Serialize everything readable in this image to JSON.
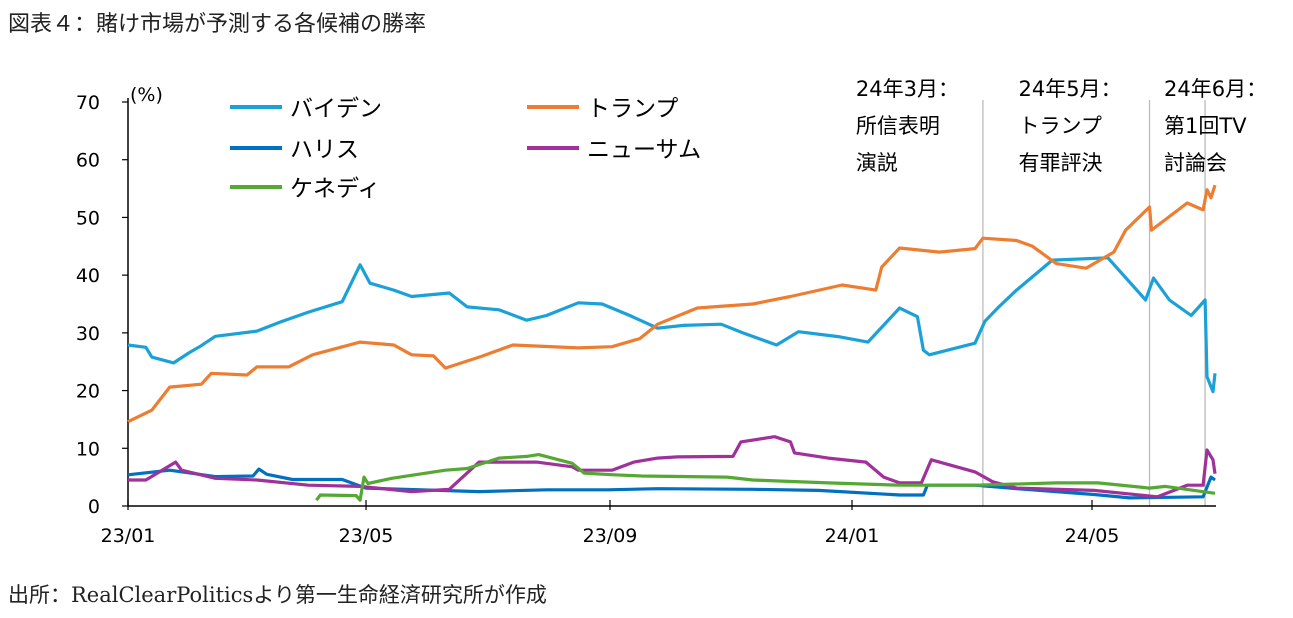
{
  "title": "図表４：賭け市場が予測する各候補の勝率",
  "source": "出所：RealClearPoliticsより第一生命経済研究所が作成",
  "chart_data": {
    "type": "line",
    "ylabel": "(%)",
    "ylim": [
      0,
      70
    ],
    "yticks": [
      0,
      10,
      20,
      30,
      40,
      50,
      60,
      70
    ],
    "xlim": [
      "2023-01-01",
      "2024-07-08"
    ],
    "xticks": [
      {
        "date": "2023-01-01",
        "label": "23/01"
      },
      {
        "date": "2023-05-01",
        "label": "23/05"
      },
      {
        "date": "2023-09-01",
        "label": "23/09"
      },
      {
        "date": "2024-01-01",
        "label": "24/01"
      },
      {
        "date": "2024-05-01",
        "label": "24/05"
      }
    ],
    "grid": false,
    "legend_position": "top-left",
    "annotations": [
      {
        "date": "2024-03-07",
        "lines": [
          "24年3月：",
          "所信表明",
          "演説"
        ]
      },
      {
        "date": "2024-05-30",
        "lines": [
          "24年5月：",
          "トランプ",
          "有罪評決"
        ]
      },
      {
        "date": "2024-06-27",
        "lines": [
          "24年6月：",
          "第1回TV",
          "討論会"
        ]
      }
    ],
    "series": [
      {
        "name": "バイデン",
        "color": "#1BA1D8",
        "points": [
          [
            "2023-01-01",
            27.9
          ],
          [
            "2023-01-10",
            27.5
          ],
          [
            "2023-01-13",
            25.8
          ],
          [
            "2023-01-24",
            24.8
          ],
          [
            "2023-02-01",
            26.6
          ],
          [
            "2023-02-07",
            27.8
          ],
          [
            "2023-02-14",
            29.4
          ],
          [
            "2023-03-07",
            30.3
          ],
          [
            "2023-03-19",
            31.9
          ],
          [
            "2023-04-02",
            33.6
          ],
          [
            "2023-04-19",
            35.4
          ],
          [
            "2023-04-28",
            41.8
          ],
          [
            "2023-05-03",
            38.6
          ],
          [
            "2023-05-15",
            37.4
          ],
          [
            "2023-05-24",
            36.3
          ],
          [
            "2023-06-12",
            36.9
          ],
          [
            "2023-06-21",
            34.5
          ],
          [
            "2023-07-07",
            34.0
          ],
          [
            "2023-07-21",
            32.2
          ],
          [
            "2023-07-31",
            33.0
          ],
          [
            "2023-08-16",
            35.2
          ],
          [
            "2023-08-28",
            35.0
          ],
          [
            "2023-09-11",
            33.0
          ],
          [
            "2023-09-25",
            30.8
          ],
          [
            "2023-10-08",
            31.3
          ],
          [
            "2023-10-27",
            31.5
          ],
          [
            "2023-11-07",
            30.0
          ],
          [
            "2023-11-24",
            27.9
          ],
          [
            "2023-12-05",
            30.2
          ],
          [
            "2023-12-26",
            29.3
          ],
          [
            "2024-01-09",
            28.4
          ],
          [
            "2024-01-18",
            31.7
          ],
          [
            "2024-01-25",
            34.3
          ],
          [
            "2024-02-03",
            32.8
          ],
          [
            "2024-02-06",
            27.0
          ],
          [
            "2024-02-09",
            26.2
          ],
          [
            "2024-03-03",
            28.2
          ],
          [
            "2024-03-08",
            32.0
          ],
          [
            "2024-03-15",
            34.5
          ],
          [
            "2024-03-24",
            37.4
          ],
          [
            "2024-04-11",
            42.6
          ],
          [
            "2024-05-09",
            43.0
          ],
          [
            "2024-05-28",
            35.7
          ],
          [
            "2024-06-01",
            39.5
          ],
          [
            "2024-06-09",
            35.7
          ],
          [
            "2024-06-20",
            33.0
          ],
          [
            "2024-06-27",
            35.7
          ],
          [
            "2024-06-28",
            22.4
          ],
          [
            "2024-07-01",
            19.8
          ],
          [
            "2024-07-02",
            23.0
          ]
        ]
      },
      {
        "name": "トランプ",
        "color": "#ED7D31",
        "points": [
          [
            "2023-01-01",
            14.6
          ],
          [
            "2023-01-13",
            16.6
          ],
          [
            "2023-01-22",
            20.6
          ],
          [
            "2023-02-07",
            21.1
          ],
          [
            "2023-02-12",
            23.0
          ],
          [
            "2023-03-02",
            22.7
          ],
          [
            "2023-03-07",
            24.1
          ],
          [
            "2023-03-23",
            24.1
          ],
          [
            "2023-04-04",
            26.2
          ],
          [
            "2023-04-28",
            28.4
          ],
          [
            "2023-05-15",
            27.9
          ],
          [
            "2023-05-24",
            26.2
          ],
          [
            "2023-06-04",
            26.0
          ],
          [
            "2023-06-10",
            23.9
          ],
          [
            "2023-06-28",
            25.9
          ],
          [
            "2023-07-14",
            27.9
          ],
          [
            "2023-08-16",
            27.4
          ],
          [
            "2023-09-02",
            27.6
          ],
          [
            "2023-09-16",
            29.0
          ],
          [
            "2023-09-25",
            31.5
          ],
          [
            "2023-10-15",
            34.3
          ],
          [
            "2023-11-12",
            35.0
          ],
          [
            "2023-12-01",
            36.3
          ],
          [
            "2023-12-27",
            38.3
          ],
          [
            "2024-01-13",
            37.4
          ],
          [
            "2024-01-16",
            41.4
          ],
          [
            "2024-01-25",
            44.7
          ],
          [
            "2024-02-14",
            44.0
          ],
          [
            "2024-03-03",
            44.6
          ],
          [
            "2024-03-07",
            46.4
          ],
          [
            "2024-03-24",
            46.0
          ],
          [
            "2024-04-01",
            45.0
          ],
          [
            "2024-04-13",
            42.0
          ],
          [
            "2024-04-28",
            41.2
          ],
          [
            "2024-05-12",
            44.0
          ],
          [
            "2024-05-18",
            47.8
          ],
          [
            "2024-05-30",
            51.8
          ],
          [
            "2024-05-31",
            47.8
          ],
          [
            "2024-06-18",
            52.5
          ],
          [
            "2024-06-26",
            51.3
          ],
          [
            "2024-06-28",
            54.8
          ],
          [
            "2024-06-30",
            53.4
          ],
          [
            "2024-07-02",
            55.6
          ]
        ]
      },
      {
        "name": "ハリス",
        "color": "#0070C0",
        "points": [
          [
            "2023-01-01",
            5.4
          ],
          [
            "2023-01-22",
            6.2
          ],
          [
            "2023-02-14",
            5.1
          ],
          [
            "2023-03-05",
            5.2
          ],
          [
            "2023-03-08",
            6.4
          ],
          [
            "2023-03-12",
            5.5
          ],
          [
            "2023-03-25",
            4.6
          ],
          [
            "2023-04-19",
            4.6
          ],
          [
            "2023-05-01",
            3.1
          ],
          [
            "2023-06-27",
            2.5
          ],
          [
            "2023-07-31",
            2.8
          ],
          [
            "2023-08-31",
            2.8
          ],
          [
            "2023-09-25",
            3.0
          ],
          [
            "2023-11-12",
            2.9
          ],
          [
            "2023-12-15",
            2.7
          ],
          [
            "2024-01-25",
            1.9
          ],
          [
            "2024-02-06",
            1.9
          ],
          [
            "2024-02-08",
            3.6
          ],
          [
            "2024-03-03",
            3.6
          ],
          [
            "2024-03-24",
            3.0
          ],
          [
            "2024-05-02",
            2.0
          ],
          [
            "2024-05-20",
            1.4
          ],
          [
            "2024-06-26",
            1.6
          ],
          [
            "2024-06-30",
            5.0
          ],
          [
            "2024-07-02",
            4.5
          ]
        ]
      },
      {
        "name": "ニューサム",
        "color": "#A0309A",
        "points": [
          [
            "2023-01-01",
            4.5
          ],
          [
            "2023-01-10",
            4.5
          ],
          [
            "2023-01-25",
            7.6
          ],
          [
            "2023-01-28",
            6.2
          ],
          [
            "2023-02-14",
            4.8
          ],
          [
            "2023-03-07",
            4.5
          ],
          [
            "2023-04-02",
            3.6
          ],
          [
            "2023-04-28",
            3.4
          ],
          [
            "2023-05-24",
            2.5
          ],
          [
            "2023-06-12",
            2.9
          ],
          [
            "2023-06-27",
            7.6
          ],
          [
            "2023-07-26",
            7.6
          ],
          [
            "2023-08-13",
            6.8
          ],
          [
            "2023-08-16",
            6.2
          ],
          [
            "2023-09-02",
            6.2
          ],
          [
            "2023-09-13",
            7.6
          ],
          [
            "2023-09-25",
            8.3
          ],
          [
            "2023-10-05",
            8.5
          ],
          [
            "2023-11-02",
            8.6
          ],
          [
            "2023-11-06",
            11.1
          ],
          [
            "2023-11-23",
            12.0
          ],
          [
            "2023-12-01",
            11.1
          ],
          [
            "2023-12-03",
            9.2
          ],
          [
            "2023-12-20",
            8.3
          ],
          [
            "2024-01-08",
            7.6
          ],
          [
            "2024-01-17",
            5.0
          ],
          [
            "2024-01-25",
            4.0
          ],
          [
            "2024-02-05",
            4.0
          ],
          [
            "2024-02-10",
            8.0
          ],
          [
            "2024-03-03",
            5.9
          ],
          [
            "2024-03-12",
            4.2
          ],
          [
            "2024-03-24",
            3.1
          ],
          [
            "2024-05-02",
            2.7
          ],
          [
            "2024-06-03",
            1.6
          ],
          [
            "2024-06-18",
            3.6
          ],
          [
            "2024-06-26",
            3.6
          ],
          [
            "2024-06-28",
            9.7
          ],
          [
            "2024-07-01",
            8.0
          ],
          [
            "2024-07-02",
            5.6
          ]
        ]
      },
      {
        "name": "ケネディ",
        "color": "#56A834",
        "points": [
          [
            "2023-04-06",
            1.0
          ],
          [
            "2023-04-08",
            1.9
          ],
          [
            "2023-04-26",
            1.8
          ],
          [
            "2023-04-28",
            1.0
          ],
          [
            "2023-04-30",
            5.0
          ],
          [
            "2023-05-02",
            3.9
          ],
          [
            "2023-05-14",
            4.8
          ],
          [
            "2023-06-10",
            6.2
          ],
          [
            "2023-06-21",
            6.5
          ],
          [
            "2023-07-07",
            8.3
          ],
          [
            "2023-07-21",
            8.6
          ],
          [
            "2023-07-27",
            8.9
          ],
          [
            "2023-08-13",
            7.4
          ],
          [
            "2023-08-19",
            5.7
          ],
          [
            "2023-09-03",
            5.4
          ],
          [
            "2023-09-17",
            5.2
          ],
          [
            "2023-10-30",
            5.0
          ],
          [
            "2023-11-12",
            4.5
          ],
          [
            "2023-12-20",
            4.0
          ],
          [
            "2024-01-25",
            3.6
          ],
          [
            "2024-03-03",
            3.6
          ],
          [
            "2024-04-13",
            4.0
          ],
          [
            "2024-05-04",
            4.0
          ],
          [
            "2024-05-30",
            3.1
          ],
          [
            "2024-06-07",
            3.4
          ],
          [
            "2024-07-02",
            2.2
          ]
        ]
      }
    ]
  }
}
